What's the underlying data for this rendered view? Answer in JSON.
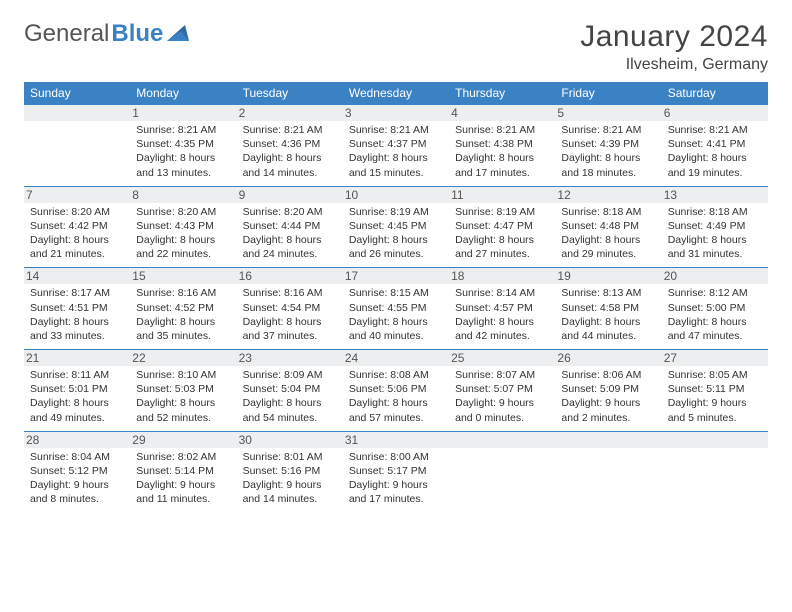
{
  "logo": {
    "part1": "General",
    "part2": "Blue"
  },
  "title": "January 2024",
  "location": "Ilvesheim, Germany",
  "colors": {
    "accent": "#3b82c4",
    "header_bg": "#eceef0",
    "text": "#333333",
    "background": "#ffffff"
  },
  "dayNames": [
    "Sunday",
    "Monday",
    "Tuesday",
    "Wednesday",
    "Thursday",
    "Friday",
    "Saturday"
  ],
  "weeks": [
    [
      {
        "n": "",
        "sr": "",
        "ss": "",
        "dl": ""
      },
      {
        "n": "1",
        "sr": "Sunrise: 8:21 AM",
        "ss": "Sunset: 4:35 PM",
        "dl": "Daylight: 8 hours and 13 minutes."
      },
      {
        "n": "2",
        "sr": "Sunrise: 8:21 AM",
        "ss": "Sunset: 4:36 PM",
        "dl": "Daylight: 8 hours and 14 minutes."
      },
      {
        "n": "3",
        "sr": "Sunrise: 8:21 AM",
        "ss": "Sunset: 4:37 PM",
        "dl": "Daylight: 8 hours and 15 minutes."
      },
      {
        "n": "4",
        "sr": "Sunrise: 8:21 AM",
        "ss": "Sunset: 4:38 PM",
        "dl": "Daylight: 8 hours and 17 minutes."
      },
      {
        "n": "5",
        "sr": "Sunrise: 8:21 AM",
        "ss": "Sunset: 4:39 PM",
        "dl": "Daylight: 8 hours and 18 minutes."
      },
      {
        "n": "6",
        "sr": "Sunrise: 8:21 AM",
        "ss": "Sunset: 4:41 PM",
        "dl": "Daylight: 8 hours and 19 minutes."
      }
    ],
    [
      {
        "n": "7",
        "sr": "Sunrise: 8:20 AM",
        "ss": "Sunset: 4:42 PM",
        "dl": "Daylight: 8 hours and 21 minutes."
      },
      {
        "n": "8",
        "sr": "Sunrise: 8:20 AM",
        "ss": "Sunset: 4:43 PM",
        "dl": "Daylight: 8 hours and 22 minutes."
      },
      {
        "n": "9",
        "sr": "Sunrise: 8:20 AM",
        "ss": "Sunset: 4:44 PM",
        "dl": "Daylight: 8 hours and 24 minutes."
      },
      {
        "n": "10",
        "sr": "Sunrise: 8:19 AM",
        "ss": "Sunset: 4:45 PM",
        "dl": "Daylight: 8 hours and 26 minutes."
      },
      {
        "n": "11",
        "sr": "Sunrise: 8:19 AM",
        "ss": "Sunset: 4:47 PM",
        "dl": "Daylight: 8 hours and 27 minutes."
      },
      {
        "n": "12",
        "sr": "Sunrise: 8:18 AM",
        "ss": "Sunset: 4:48 PM",
        "dl": "Daylight: 8 hours and 29 minutes."
      },
      {
        "n": "13",
        "sr": "Sunrise: 8:18 AM",
        "ss": "Sunset: 4:49 PM",
        "dl": "Daylight: 8 hours and 31 minutes."
      }
    ],
    [
      {
        "n": "14",
        "sr": "Sunrise: 8:17 AM",
        "ss": "Sunset: 4:51 PM",
        "dl": "Daylight: 8 hours and 33 minutes."
      },
      {
        "n": "15",
        "sr": "Sunrise: 8:16 AM",
        "ss": "Sunset: 4:52 PM",
        "dl": "Daylight: 8 hours and 35 minutes."
      },
      {
        "n": "16",
        "sr": "Sunrise: 8:16 AM",
        "ss": "Sunset: 4:54 PM",
        "dl": "Daylight: 8 hours and 37 minutes."
      },
      {
        "n": "17",
        "sr": "Sunrise: 8:15 AM",
        "ss": "Sunset: 4:55 PM",
        "dl": "Daylight: 8 hours and 40 minutes."
      },
      {
        "n": "18",
        "sr": "Sunrise: 8:14 AM",
        "ss": "Sunset: 4:57 PM",
        "dl": "Daylight: 8 hours and 42 minutes."
      },
      {
        "n": "19",
        "sr": "Sunrise: 8:13 AM",
        "ss": "Sunset: 4:58 PM",
        "dl": "Daylight: 8 hours and 44 minutes."
      },
      {
        "n": "20",
        "sr": "Sunrise: 8:12 AM",
        "ss": "Sunset: 5:00 PM",
        "dl": "Daylight: 8 hours and 47 minutes."
      }
    ],
    [
      {
        "n": "21",
        "sr": "Sunrise: 8:11 AM",
        "ss": "Sunset: 5:01 PM",
        "dl": "Daylight: 8 hours and 49 minutes."
      },
      {
        "n": "22",
        "sr": "Sunrise: 8:10 AM",
        "ss": "Sunset: 5:03 PM",
        "dl": "Daylight: 8 hours and 52 minutes."
      },
      {
        "n": "23",
        "sr": "Sunrise: 8:09 AM",
        "ss": "Sunset: 5:04 PM",
        "dl": "Daylight: 8 hours and 54 minutes."
      },
      {
        "n": "24",
        "sr": "Sunrise: 8:08 AM",
        "ss": "Sunset: 5:06 PM",
        "dl": "Daylight: 8 hours and 57 minutes."
      },
      {
        "n": "25",
        "sr": "Sunrise: 8:07 AM",
        "ss": "Sunset: 5:07 PM",
        "dl": "Daylight: 9 hours and 0 minutes."
      },
      {
        "n": "26",
        "sr": "Sunrise: 8:06 AM",
        "ss": "Sunset: 5:09 PM",
        "dl": "Daylight: 9 hours and 2 minutes."
      },
      {
        "n": "27",
        "sr": "Sunrise: 8:05 AM",
        "ss": "Sunset: 5:11 PM",
        "dl": "Daylight: 9 hours and 5 minutes."
      }
    ],
    [
      {
        "n": "28",
        "sr": "Sunrise: 8:04 AM",
        "ss": "Sunset: 5:12 PM",
        "dl": "Daylight: 9 hours and 8 minutes."
      },
      {
        "n": "29",
        "sr": "Sunrise: 8:02 AM",
        "ss": "Sunset: 5:14 PM",
        "dl": "Daylight: 9 hours and 11 minutes."
      },
      {
        "n": "30",
        "sr": "Sunrise: 8:01 AM",
        "ss": "Sunset: 5:16 PM",
        "dl": "Daylight: 9 hours and 14 minutes."
      },
      {
        "n": "31",
        "sr": "Sunrise: 8:00 AM",
        "ss": "Sunset: 5:17 PM",
        "dl": "Daylight: 9 hours and 17 minutes."
      },
      {
        "n": "",
        "sr": "",
        "ss": "",
        "dl": ""
      },
      {
        "n": "",
        "sr": "",
        "ss": "",
        "dl": ""
      },
      {
        "n": "",
        "sr": "",
        "ss": "",
        "dl": ""
      }
    ]
  ]
}
